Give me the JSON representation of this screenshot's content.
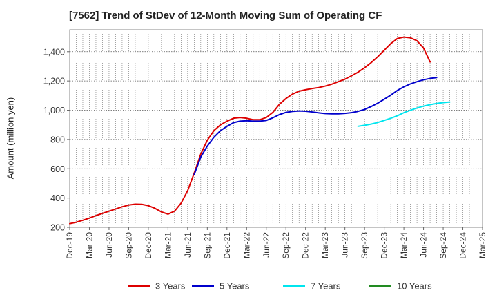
{
  "chart_data": {
    "type": "line",
    "title": "[7562]  Trend of StDev of 12-Month Moving Sum of Operating CF",
    "xlabel": "",
    "ylabel": "Amount (million yen)",
    "ylim": [
      200,
      1550
    ],
    "yticks": [
      200,
      400,
      600,
      800,
      1000,
      1200,
      1400
    ],
    "ytick_labels": [
      "200",
      "400",
      "600",
      "800",
      "1,000",
      "1,200",
      "1,400"
    ],
    "xlim": [
      "Dec-19",
      "Mar-25"
    ],
    "xtick_labels": [
      "Dec-19",
      "Mar-20",
      "Jun-20",
      "Sep-20",
      "Dec-20",
      "Mar-21",
      "Jun-21",
      "Sep-21",
      "Dec-21",
      "Mar-22",
      "Jun-22",
      "Sep-22",
      "Dec-22",
      "Mar-23",
      "Jun-23",
      "Sep-23",
      "Dec-23",
      "Mar-24",
      "Jun-24",
      "Sep-24",
      "Dec-24",
      "Mar-25"
    ],
    "grid": true,
    "legend_position": "bottom",
    "series": [
      {
        "name": "3 Years",
        "color": "#dd0000",
        "start": "Dec-19",
        "values": [
          225,
          235,
          248,
          263,
          280,
          295,
          310,
          325,
          340,
          352,
          358,
          357,
          348,
          330,
          305,
          290,
          310,
          365,
          450,
          570,
          700,
          795,
          860,
          900,
          925,
          945,
          950,
          945,
          935,
          935,
          950,
          985,
          1040,
          1080,
          1110,
          1130,
          1140,
          1148,
          1155,
          1165,
          1178,
          1195,
          1212,
          1235,
          1260,
          1290,
          1325,
          1365,
          1410,
          1455,
          1490,
          1500,
          1495,
          1475,
          1425,
          1330
        ]
      },
      {
        "name": "5 Years",
        "color": "#0000cc",
        "start": "Jul-21",
        "values": [
          560,
          680,
          755,
          815,
          860,
          890,
          915,
          925,
          928,
          925,
          925,
          930,
          948,
          970,
          985,
          992,
          995,
          993,
          988,
          982,
          977,
          975,
          975,
          978,
          983,
          992,
          1005,
          1025,
          1048,
          1075,
          1103,
          1135,
          1160,
          1180,
          1195,
          1208,
          1217,
          1223
        ]
      },
      {
        "name": "7 Years",
        "color": "#00e5ee",
        "start": "Aug-23",
        "values": [
          890,
          897,
          905,
          916,
          930,
          945,
          962,
          983,
          1000,
          1015,
          1028,
          1038,
          1046,
          1052,
          1056
        ]
      },
      {
        "name": "10 Years",
        "color": "#228b22",
        "start": "",
        "values": []
      }
    ]
  }
}
